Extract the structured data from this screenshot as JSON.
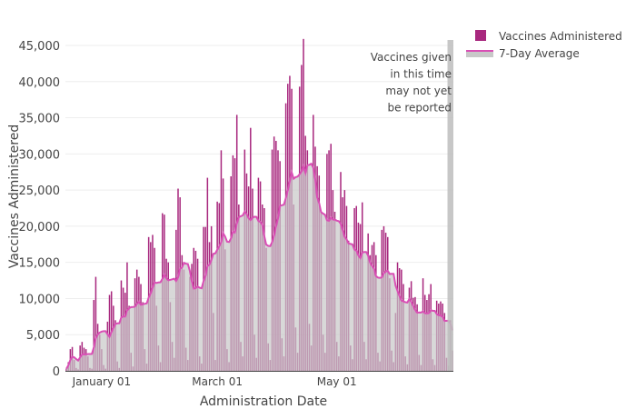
{
  "chart_data": {
    "type": "bar",
    "xlabel": "Administration Date",
    "ylabel": "Vaccines Administered",
    "ylim": [
      0,
      46000
    ],
    "yticks": [
      0,
      5000,
      10000,
      15000,
      20000,
      25000,
      30000,
      35000,
      40000,
      45000
    ],
    "ytick_labels": [
      "0",
      "5,000",
      "10,000",
      "15,000",
      "20,000",
      "25,000",
      "30,000",
      "35,000",
      "40,000",
      "45,000"
    ],
    "xticks": [
      "2021-01-01",
      "2021-03-01",
      "2021-05-01"
    ],
    "xtick_labels": [
      "January 01",
      "March 01",
      "May 01"
    ],
    "grid": "horizontal",
    "legend_position": "top-right",
    "annotation": {
      "lines": [
        "Vaccines given",
        "in this time",
        "may not yet",
        "be reported"
      ],
      "region_start": "2021-06-27",
      "region_end": "2021-06-29"
    },
    "colors": {
      "bars": "#a8287e",
      "average_line": "#d94fb5",
      "average_fill": "#c8c8c8",
      "unreported_band": "#bdbdbd"
    },
    "series": [
      {
        "name": "Vaccines Administered",
        "kind": "bar",
        "values": [
          300,
          1200,
          3000,
          3300,
          1500,
          400,
          200,
          3500,
          4000,
          3200,
          3000,
          2000,
          400,
          300,
          9800,
          13000,
          6500,
          5000,
          3000,
          800,
          300,
          6800,
          10500,
          11000,
          9000,
          7000,
          1300,
          400,
          12500,
          11500,
          10800,
          15000,
          9000,
          2500,
          600,
          12800,
          14000,
          13000,
          12000,
          9500,
          3000,
          1000,
          18500,
          17800,
          18800,
          17000,
          9000,
          3500,
          1200,
          21800,
          21600,
          15500,
          15000,
          9500,
          4000,
          1800,
          19500,
          25200,
          24000,
          16000,
          14000,
          3200,
          1500,
          13000,
          14800,
          17000,
          16600,
          15500,
          2000,
          1000,
          19900,
          19900,
          26700,
          17800,
          20000,
          8000,
          1500,
          23400,
          23200,
          30500,
          26600,
          16800,
          3000,
          1200,
          26900,
          29800,
          29400,
          35400,
          23000,
          4000,
          2000,
          30600,
          27300,
          25500,
          33600,
          25200,
          5000,
          1800,
          26700,
          26200,
          23000,
          22500,
          17000,
          3800,
          1500,
          30600,
          32400,
          31800,
          30500,
          29000,
          4500,
          2000,
          37000,
          39700,
          40800,
          39000,
          23000,
          6000,
          2500,
          39300,
          42300,
          45900,
          32500,
          30500,
          6500,
          3500,
          35400,
          31000,
          28300,
          27000,
          22000,
          5000,
          2500,
          30000,
          30500,
          31400,
          25000,
          22000,
          4000,
          2000,
          27500,
          24000,
          25000,
          22800,
          18000,
          3500,
          1600,
          22500,
          22800,
          20500,
          20300,
          23300,
          4000,
          1600,
          19000,
          16000,
          17400,
          17800,
          16000,
          2500,
          1300,
          19500,
          20000,
          19100,
          18500,
          12800,
          2800,
          1200,
          8000,
          15000,
          14200,
          14000,
          12000,
          2000,
          900,
          11500,
          12400,
          10100,
          10200,
          9200,
          2200,
          800,
          12800,
          10500,
          9800,
          10600,
          12000,
          1600,
          800,
          9700,
          9300,
          9600,
          9300,
          8000,
          1800,
          700,
          7000,
          2800
        ]
      },
      {
        "name": "7-Day Average",
        "kind": "area-line",
        "window_days": 7
      }
    ]
  },
  "legend": [
    {
      "label": "Vaccines Administered",
      "icon": "square-swatch"
    },
    {
      "label": "7-Day Average",
      "icon": "line-area-swatch"
    }
  ]
}
